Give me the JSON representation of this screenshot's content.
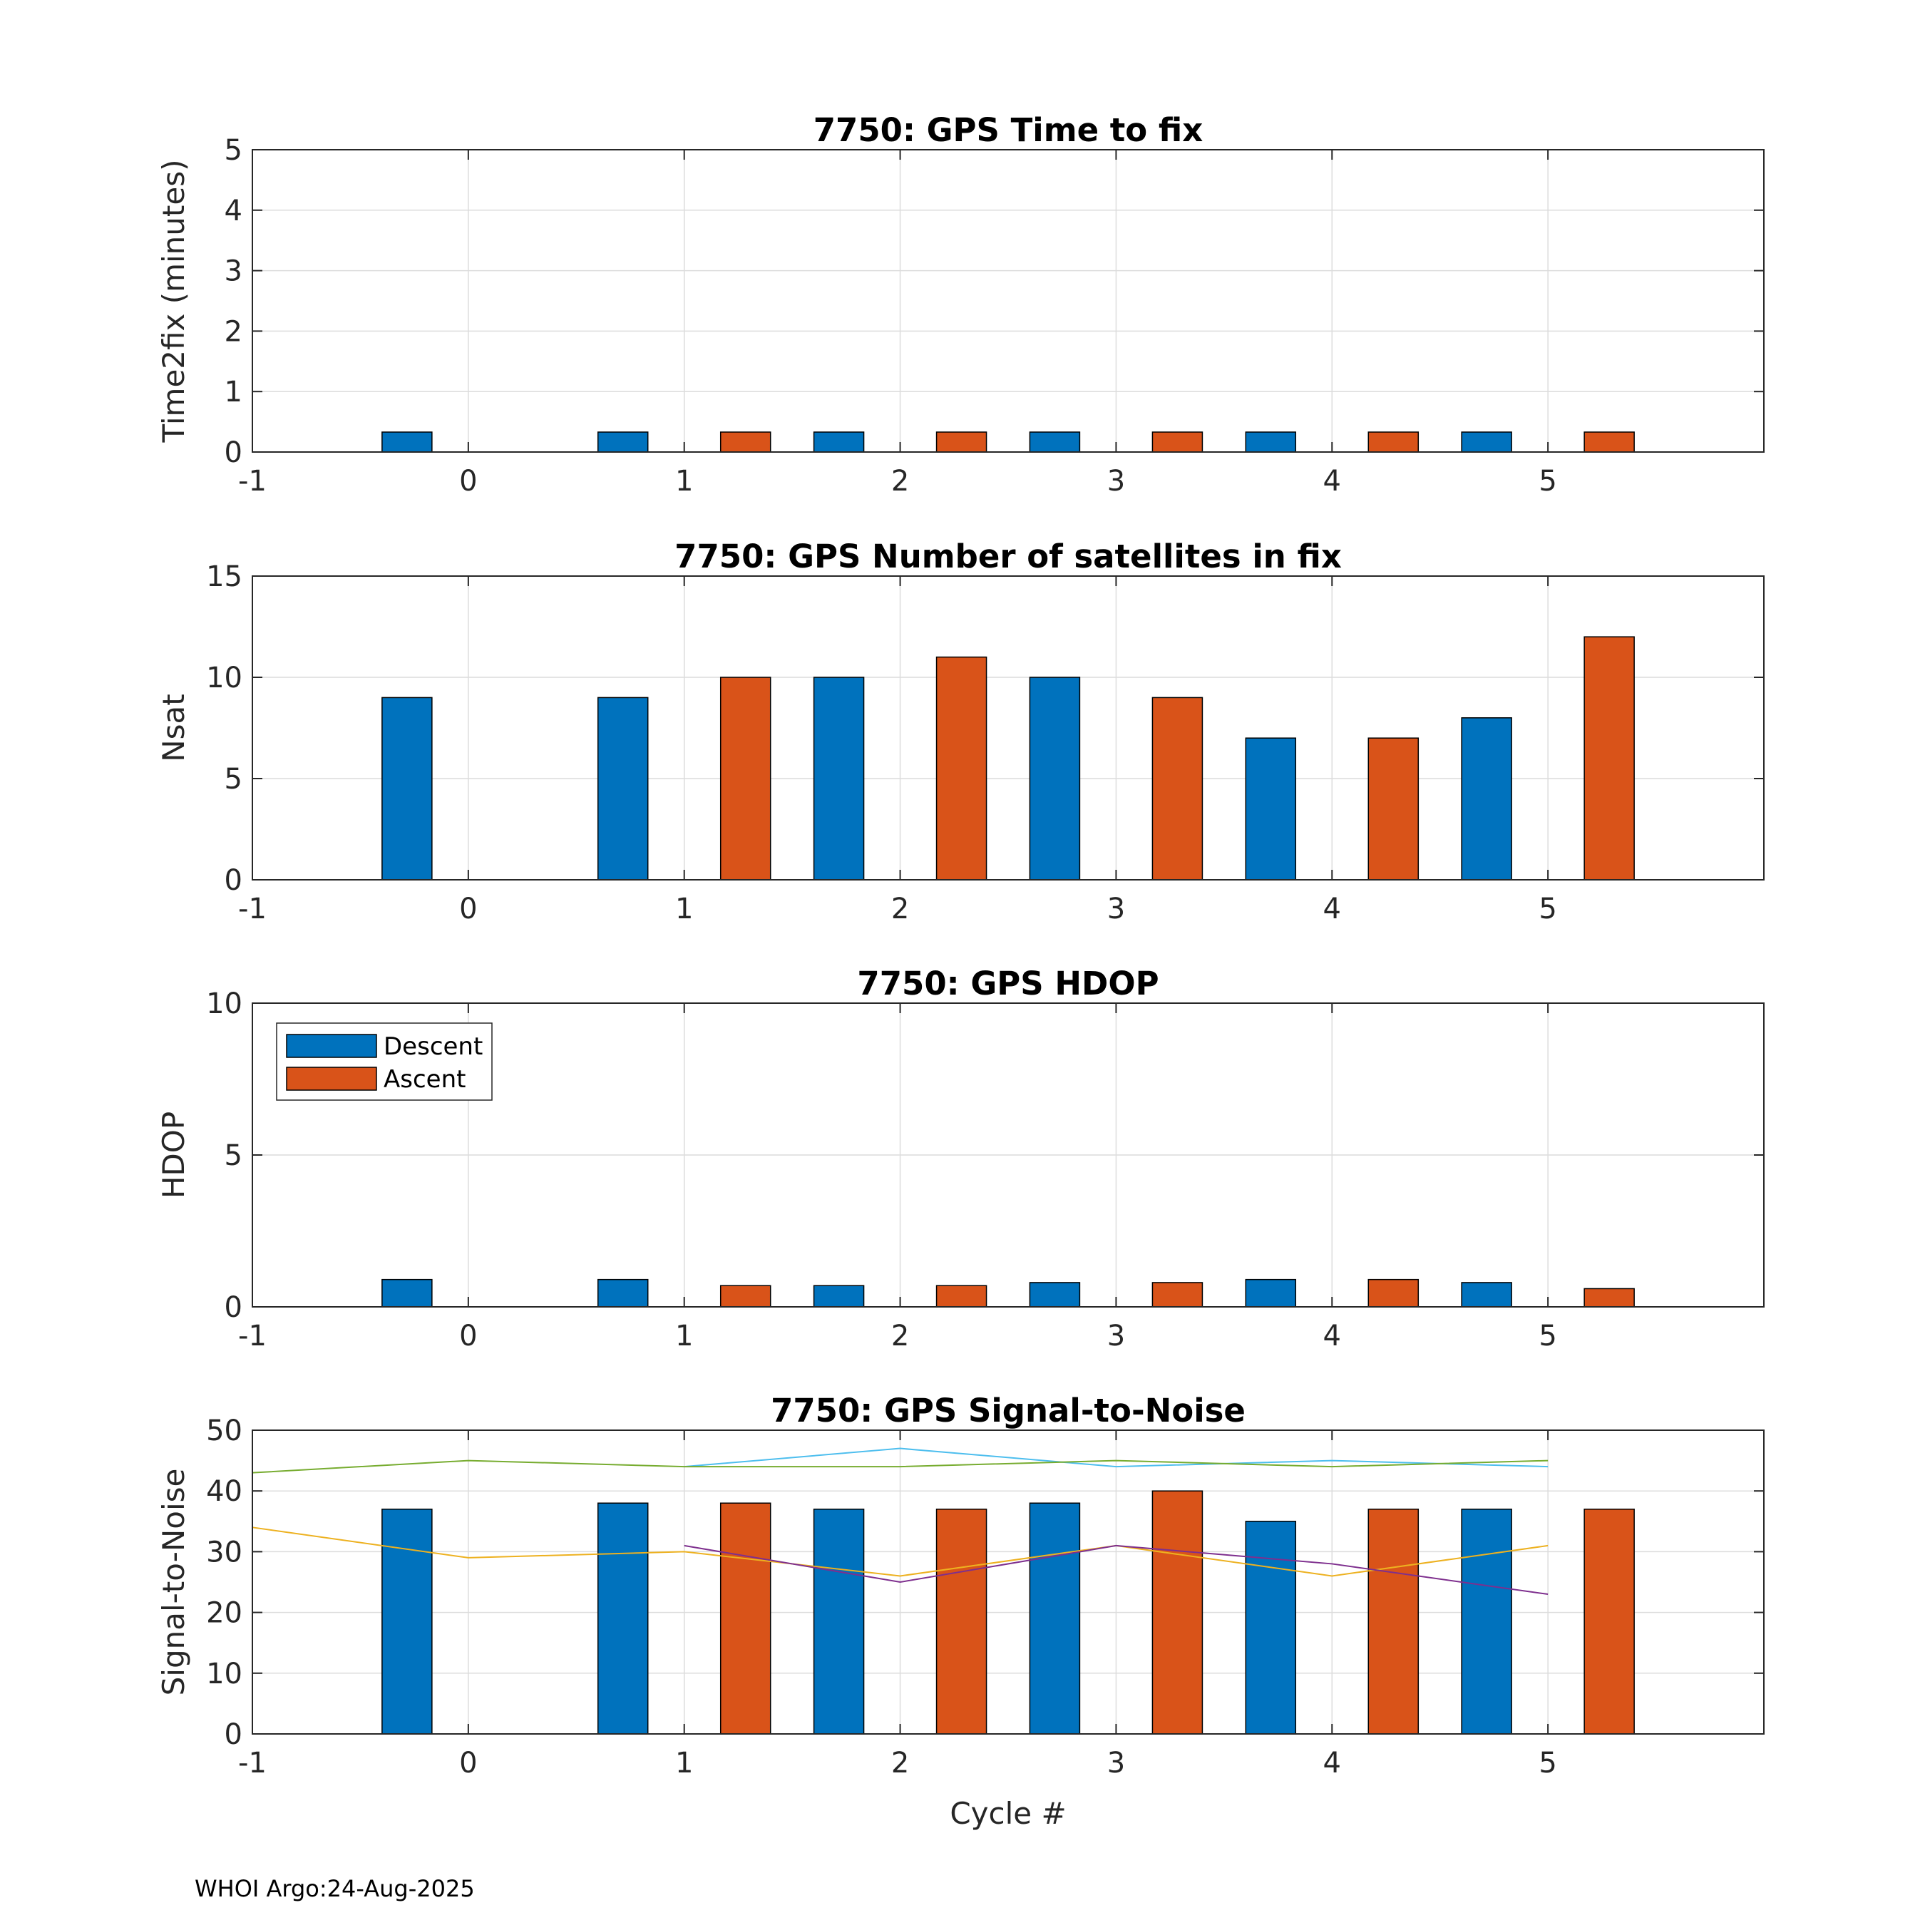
{
  "footer": "WHOI Argo:24-Aug-2025",
  "legend": {
    "descent": "Descent",
    "ascent": "Ascent"
  },
  "colors": {
    "descent": "#0072BD",
    "ascent": "#D95319",
    "line1": "#4DBEEE",
    "line2": "#77AC30",
    "line3": "#EDB120",
    "line4": "#7E2F8E"
  },
  "chart_data": [
    {
      "type": "bar",
      "title": "7750: GPS Time to fix",
      "xlabel": "",
      "ylabel": "Time2fix (minutes)",
      "xlim": [
        -1,
        6
      ],
      "ylim": [
        0,
        5
      ],
      "xticks": [
        "-1",
        "0",
        "1",
        "2",
        "3",
        "4",
        "5"
      ],
      "yticks": [
        "0",
        "1",
        "2",
        "3",
        "4",
        "5"
      ],
      "grid": true,
      "categories": [
        0,
        1,
        2,
        3,
        4,
        5
      ],
      "series": [
        {
          "name": "Descent",
          "values": [
            0.33,
            0.33,
            0.33,
            0.33,
            0.33,
            0.33
          ]
        },
        {
          "name": "Ascent",
          "values": [
            null,
            0.33,
            0.33,
            0.33,
            0.33,
            0.33
          ]
        }
      ]
    },
    {
      "type": "bar",
      "title": "7750: GPS Number of satellites in fix",
      "xlabel": "",
      "ylabel": "Nsat",
      "xlim": [
        -1,
        6
      ],
      "ylim": [
        0,
        15
      ],
      "xticks": [
        "-1",
        "0",
        "1",
        "2",
        "3",
        "4",
        "5"
      ],
      "yticks": [
        "0",
        "5",
        "10",
        "15"
      ],
      "grid": true,
      "categories": [
        0,
        1,
        2,
        3,
        4,
        5
      ],
      "series": [
        {
          "name": "Descent",
          "values": [
            9,
            9,
            10,
            10,
            7,
            8
          ]
        },
        {
          "name": "Ascent",
          "values": [
            null,
            10,
            11,
            9,
            7,
            12
          ]
        }
      ]
    },
    {
      "type": "bar",
      "title": "7750: GPS HDOP",
      "xlabel": "",
      "ylabel": "HDOP",
      "xlim": [
        -1,
        6
      ],
      "ylim": [
        0,
        10
      ],
      "xticks": [
        "-1",
        "0",
        "1",
        "2",
        "3",
        "4",
        "5"
      ],
      "yticks": [
        "0",
        "5",
        "10"
      ],
      "grid": true,
      "legend": "top-left",
      "categories": [
        0,
        1,
        2,
        3,
        4,
        5
      ],
      "series": [
        {
          "name": "Descent",
          "values": [
            0.9,
            0.9,
            0.7,
            0.8,
            0.9,
            0.8
          ]
        },
        {
          "name": "Ascent",
          "values": [
            null,
            0.7,
            0.7,
            0.8,
            0.9,
            0.6
          ]
        }
      ]
    },
    {
      "type": "bar",
      "title": "7750: GPS Signal-to-Noise",
      "xlabel": "Cycle #",
      "ylabel": "Signal-to-Noise",
      "xlim": [
        -1,
        6
      ],
      "ylim": [
        0,
        50
      ],
      "xticks": [
        "-1",
        "0",
        "1",
        "2",
        "3",
        "4",
        "5"
      ],
      "yticks": [
        "0",
        "10",
        "20",
        "30",
        "40",
        "50"
      ],
      "grid": true,
      "categories": [
        0,
        1,
        2,
        3,
        4,
        5
      ],
      "series": [
        {
          "name": "Descent",
          "values": [
            37,
            38,
            37,
            38,
            35,
            37
          ]
        },
        {
          "name": "Ascent",
          "values": [
            null,
            38,
            37,
            40,
            37,
            37
          ]
        }
      ],
      "lines": [
        {
          "color_key": "line1",
          "x": [
            1,
            2,
            3,
            4,
            5
          ],
          "y": [
            44,
            47,
            44,
            45,
            44
          ]
        },
        {
          "color_key": "line2",
          "x": [
            -1,
            0,
            1,
            2,
            3,
            4,
            5
          ],
          "y": [
            43,
            45,
            44,
            44,
            45,
            44,
            45
          ]
        },
        {
          "color_key": "line3",
          "x": [
            -1,
            0,
            1,
            2,
            3,
            4,
            5
          ],
          "y": [
            34,
            29,
            30,
            26,
            31,
            26,
            31
          ]
        },
        {
          "color_key": "line4",
          "x": [
            1,
            2,
            3,
            4,
            5
          ],
          "y": [
            31,
            25,
            31,
            28,
            23
          ]
        }
      ]
    }
  ]
}
